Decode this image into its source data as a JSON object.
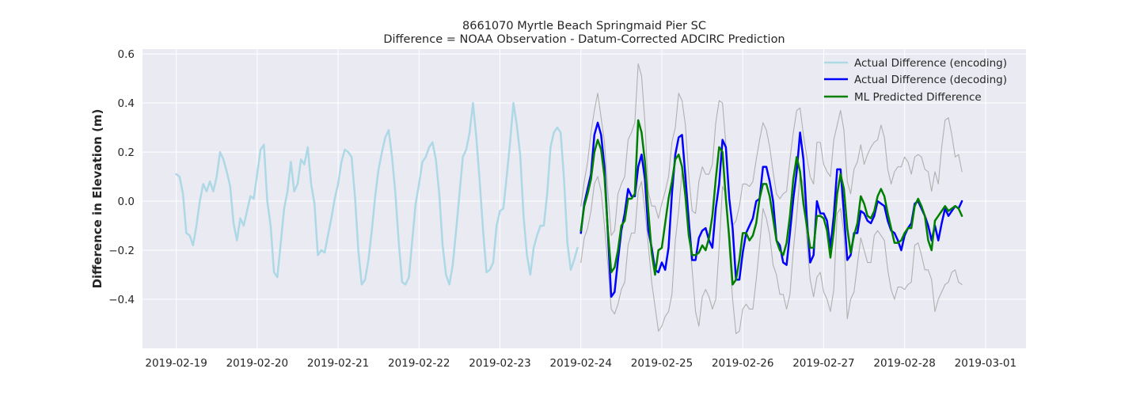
{
  "chart_data": {
    "type": "line",
    "title": "8661070 Myrtle Beach Springmaid Pier SC",
    "subtitle": "Difference = NOAA Observation - Datum-Corrected ADCIRC Prediction",
    "xlabel": "",
    "ylabel": "Difference in Elevation (m)",
    "xlim": [
      "2019-02-18T14:00",
      "2019-03-01T12:00"
    ],
    "ylim": [
      -0.6,
      0.62
    ],
    "grid": true,
    "legend_position": "top-right",
    "x_ticks": [
      "2019-02-19",
      "2019-02-20",
      "2019-02-21",
      "2019-02-22",
      "2019-02-23",
      "2019-02-24",
      "2019-02-25",
      "2019-02-26",
      "2019-02-27",
      "2019-02-28",
      "2019-03-01"
    ],
    "y_ticks": [
      -0.4,
      -0.2,
      0.0,
      0.2,
      0.4,
      0.6
    ],
    "y_tick_labels": [
      "−0.4",
      "−0.2",
      "0.0",
      "0.2",
      "0.4",
      "0.6"
    ],
    "colors": {
      "background": "#eaeaf2",
      "grid": "#ffffff",
      "encoding": "#add8e6",
      "decoding": "#0000ff",
      "predicted": "#008000",
      "bounds": "#b0b0b0"
    },
    "series": [
      {
        "name": "Actual Difference (encoding)",
        "color": "#add8e6",
        "start": "2019-02-19T00:00",
        "step_hours": 1,
        "values": [
          0.11,
          0.1,
          0.03,
          -0.13,
          -0.14,
          -0.18,
          -0.1,
          0.0,
          0.07,
          0.04,
          0.08,
          0.04,
          0.1,
          0.2,
          0.17,
          0.12,
          0.06,
          -0.09,
          -0.16,
          -0.07,
          -0.1,
          -0.04,
          0.02,
          0.01,
          0.11,
          0.21,
          0.23,
          0.0,
          -0.1,
          -0.29,
          -0.31,
          -0.17,
          -0.03,
          0.04,
          0.16,
          0.04,
          0.07,
          0.17,
          0.15,
          0.22,
          0.07,
          -0.01,
          -0.22,
          -0.2,
          -0.21,
          -0.14,
          -0.07,
          0.01,
          0.07,
          0.16,
          0.21,
          0.2,
          0.18,
          0.02,
          -0.2,
          -0.34,
          -0.32,
          -0.24,
          -0.12,
          0.02,
          0.13,
          0.2,
          0.26,
          0.29,
          0.18,
          0.03,
          -0.17,
          -0.33,
          -0.34,
          -0.31,
          -0.16,
          -0.01,
          0.07,
          0.16,
          0.18,
          0.22,
          0.24,
          0.17,
          0.03,
          -0.18,
          -0.3,
          -0.34,
          -0.26,
          -0.12,
          0.03,
          0.18,
          0.21,
          0.28,
          0.4,
          0.26,
          0.08,
          -0.12,
          -0.29,
          -0.28,
          -0.25,
          -0.1,
          -0.04,
          -0.03,
          0.1,
          0.24,
          0.4,
          0.31,
          0.19,
          -0.06,
          -0.22,
          -0.3,
          -0.19,
          -0.14,
          -0.1,
          -0.1,
          0.03,
          0.22,
          0.28,
          0.3,
          0.28,
          0.09,
          -0.17,
          -0.28,
          -0.24,
          -0.19
        ]
      },
      {
        "name": "Actual Difference (decoding)",
        "color": "#0000ff",
        "start": "2019-02-24T00:00",
        "step_hours": 1,
        "values": [
          -0.13,
          -0.01,
          0.05,
          0.11,
          0.27,
          0.32,
          0.27,
          0.14,
          -0.13,
          -0.39,
          -0.37,
          -0.24,
          -0.12,
          -0.05,
          0.05,
          0.02,
          0.02,
          0.14,
          0.19,
          0.09,
          -0.12,
          -0.19,
          -0.28,
          -0.29,
          -0.25,
          -0.28,
          -0.19,
          0.03,
          0.19,
          0.26,
          0.27,
          0.1,
          -0.08,
          -0.24,
          -0.24,
          -0.15,
          -0.12,
          -0.11,
          -0.16,
          -0.19,
          -0.03,
          0.07,
          0.25,
          0.22,
          0.01,
          -0.11,
          -0.32,
          -0.32,
          -0.21,
          -0.13,
          -0.1,
          -0.07,
          0.0,
          0.01,
          0.14,
          0.14,
          0.08,
          0.0,
          -0.16,
          -0.18,
          -0.25,
          -0.26,
          -0.13,
          0.01,
          0.12,
          0.28,
          0.17,
          -0.07,
          -0.25,
          -0.22,
          0.0,
          -0.05,
          -0.05,
          -0.08,
          -0.19,
          -0.06,
          0.13,
          0.13,
          -0.05,
          -0.24,
          -0.22,
          -0.13,
          -0.13,
          -0.04,
          -0.05,
          -0.08,
          -0.09,
          -0.06,
          0.0,
          -0.01,
          -0.02,
          -0.08,
          -0.12,
          -0.13,
          -0.16,
          -0.2,
          -0.14,
          -0.11,
          -0.09,
          -0.01,
          0.0,
          -0.03,
          -0.06,
          -0.1,
          -0.16,
          -0.1,
          -0.16,
          -0.09,
          -0.03,
          -0.06,
          -0.04,
          -0.02,
          -0.03,
          0.0
        ]
      },
      {
        "name": "ML Predicted Difference",
        "color": "#008000",
        "start": "2019-02-24T00:00",
        "step_hours": 1,
        "values": [
          -0.12,
          -0.02,
          0.03,
          0.09,
          0.2,
          0.25,
          0.21,
          0.1,
          -0.12,
          -0.29,
          -0.27,
          -0.2,
          -0.1,
          -0.08,
          0.01,
          0.01,
          0.03,
          0.33,
          0.28,
          0.16,
          -0.04,
          -0.21,
          -0.3,
          -0.2,
          -0.19,
          -0.09,
          0.01,
          0.08,
          0.17,
          0.19,
          0.14,
          0.02,
          -0.14,
          -0.22,
          -0.22,
          -0.21,
          -0.18,
          -0.2,
          -0.15,
          -0.06,
          0.09,
          0.22,
          0.2,
          0.01,
          -0.15,
          -0.34,
          -0.32,
          -0.24,
          -0.13,
          -0.13,
          -0.16,
          -0.14,
          -0.09,
          0.01,
          0.07,
          0.07,
          0.02,
          -0.07,
          -0.16,
          -0.2,
          -0.22,
          -0.17,
          -0.06,
          0.09,
          0.18,
          0.12,
          -0.01,
          -0.1,
          -0.19,
          -0.19,
          -0.06,
          -0.06,
          -0.07,
          -0.12,
          -0.23,
          -0.12,
          0.03,
          0.11,
          0.05,
          -0.11,
          -0.21,
          -0.14,
          -0.09,
          0.02,
          -0.01,
          -0.06,
          -0.07,
          -0.04,
          0.02,
          0.05,
          0.02,
          -0.05,
          -0.11,
          -0.17,
          -0.17,
          -0.16,
          -0.13,
          -0.11,
          -0.11,
          -0.02,
          0.01,
          -0.02,
          -0.06,
          -0.16,
          -0.2,
          -0.08,
          -0.06,
          -0.04,
          -0.02,
          -0.04,
          -0.03,
          -0.02,
          -0.03,
          -0.06
        ]
      },
      {
        "name": "",
        "role": "upper-bound",
        "color": "#b0b0b0",
        "start": "2019-02-24T00:00",
        "step_hours": 1,
        "values": [
          -0.02,
          0.08,
          0.16,
          0.28,
          0.37,
          0.44,
          0.34,
          0.24,
          0.04,
          -0.14,
          -0.12,
          0.03,
          0.07,
          0.1,
          0.25,
          0.28,
          0.32,
          0.56,
          0.51,
          0.32,
          0.04,
          -0.02,
          -0.02,
          -0.07,
          -0.01,
          0.04,
          0.1,
          0.24,
          0.3,
          0.44,
          0.41,
          0.31,
          0.1,
          -0.04,
          -0.05,
          0.08,
          0.14,
          0.11,
          0.11,
          0.15,
          0.32,
          0.41,
          0.4,
          0.23,
          0.0,
          -0.1,
          -0.08,
          -0.02,
          0.07,
          0.07,
          0.06,
          0.08,
          0.17,
          0.25,
          0.32,
          0.29,
          0.22,
          0.12,
          0.03,
          0.01,
          0.03,
          0.04,
          0.17,
          0.28,
          0.37,
          0.38,
          0.27,
          0.18,
          0.1,
          0.07,
          0.24,
          0.24,
          0.15,
          0.12,
          0.1,
          0.25,
          0.31,
          0.37,
          0.29,
          0.08,
          0.03,
          0.13,
          0.16,
          0.23,
          0.15,
          0.19,
          0.22,
          0.24,
          0.25,
          0.31,
          0.26,
          0.13,
          0.07,
          0.12,
          0.14,
          0.14,
          0.18,
          0.16,
          0.11,
          0.18,
          0.19,
          0.18,
          0.13,
          0.12,
          0.04,
          0.12,
          0.07,
          0.22,
          0.33,
          0.34,
          0.27,
          0.18,
          0.19,
          0.12
        ]
      },
      {
        "name": "",
        "role": "lower-bound",
        "color": "#b0b0b0",
        "start": "2019-02-24T00:00",
        "step_hours": 1,
        "values": [
          -0.25,
          -0.15,
          -0.11,
          -0.04,
          0.07,
          0.1,
          0.04,
          -0.1,
          -0.26,
          -0.44,
          -0.46,
          -0.42,
          -0.36,
          -0.33,
          -0.18,
          -0.13,
          -0.13,
          0.04,
          0.08,
          -0.04,
          -0.18,
          -0.33,
          -0.43,
          -0.53,
          -0.51,
          -0.47,
          -0.45,
          -0.38,
          -0.16,
          -0.04,
          0.12,
          0.06,
          -0.13,
          -0.28,
          -0.45,
          -0.51,
          -0.39,
          -0.36,
          -0.39,
          -0.44,
          -0.4,
          -0.19,
          0.06,
          0.03,
          -0.2,
          -0.4,
          -0.54,
          -0.53,
          -0.44,
          -0.42,
          -0.44,
          -0.44,
          -0.32,
          -0.18,
          -0.03,
          -0.07,
          -0.14,
          -0.26,
          -0.3,
          -0.38,
          -0.38,
          -0.44,
          -0.38,
          -0.2,
          -0.06,
          0.11,
          0.07,
          -0.16,
          -0.32,
          -0.39,
          -0.31,
          -0.29,
          -0.37,
          -0.4,
          -0.45,
          -0.36,
          -0.05,
          -0.03,
          -0.13,
          -0.48,
          -0.4,
          -0.37,
          -0.26,
          -0.15,
          -0.2,
          -0.25,
          -0.25,
          -0.14,
          -0.12,
          -0.14,
          -0.16,
          -0.28,
          -0.36,
          -0.4,
          -0.35,
          -0.35,
          -0.36,
          -0.34,
          -0.33,
          -0.18,
          -0.17,
          -0.22,
          -0.28,
          -0.28,
          -0.32,
          -0.45,
          -0.4,
          -0.37,
          -0.34,
          -0.33,
          -0.29,
          -0.28,
          -0.33,
          -0.34
        ]
      }
    ]
  }
}
